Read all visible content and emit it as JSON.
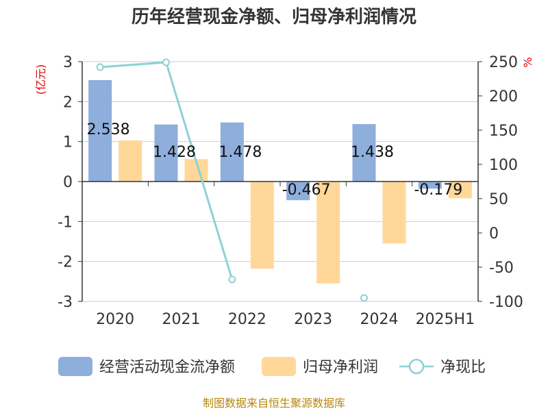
{
  "chart_data": {
    "type": "bar",
    "title": "历年经营现金净额、归母净利润情况",
    "categories": [
      "2020",
      "2021",
      "2022",
      "2023",
      "2024",
      "2025H1"
    ],
    "y_left": {
      "unit": "(亿元)",
      "ylim": [
        -3,
        3
      ],
      "ticks": [
        3,
        2,
        1,
        0,
        -1,
        -2,
        -3
      ],
      "tick_labels": [
        "3",
        "2",
        "1",
        "0",
        "-1",
        "-2",
        "-3"
      ]
    },
    "y_right": {
      "unit": "%",
      "ylim": [
        -100,
        250
      ],
      "ticks": [
        250,
        200,
        150,
        100,
        50,
        0,
        -50,
        -100
      ],
      "tick_labels": [
        "250",
        "200",
        "150",
        "100",
        "50",
        "0",
        "-50",
        "-100"
      ]
    },
    "series": [
      {
        "name": "经营活动现金流净额",
        "kind": "bar",
        "axis": "left",
        "color": "#8eaedb",
        "values": [
          2.538,
          1.428,
          1.478,
          -0.467,
          1.438,
          -0.179
        ],
        "labels": [
          "2.538",
          "1.428",
          "1.478",
          "-0.467",
          "1.438",
          "-0.179"
        ]
      },
      {
        "name": "归母净利润",
        "kind": "bar",
        "axis": "left",
        "color": "#ffd899",
        "values": [
          1.03,
          0.56,
          -2.18,
          -2.55,
          -1.55,
          -0.42
        ]
      },
      {
        "name": "净现比",
        "kind": "line",
        "axis": "right",
        "color": "#8dd1d6",
        "values": [
          242,
          249,
          -68,
          null,
          -95,
          null
        ]
      }
    ],
    "grid": true,
    "legend": "bottom"
  },
  "source": "制图数据来自恒生聚源数据库"
}
